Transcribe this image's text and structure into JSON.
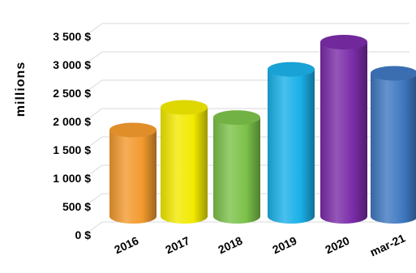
{
  "chart_data": {
    "type": "bar",
    "title": "",
    "xlabel": "",
    "ylabel": "millions",
    "categories": [
      "2016",
      "2017",
      "2018",
      "2019",
      "2020",
      "mar-21"
    ],
    "values": [
      1750,
      2150,
      1970,
      2820,
      3300,
      2750
    ],
    "colors": [
      "#f29a2e",
      "#f2ea00",
      "#7cc24a",
      "#1ab0e8",
      "#7a2ca8",
      "#3f78c0"
    ],
    "y_ticks": [
      0,
      500,
      1000,
      1500,
      2000,
      2500,
      3000,
      3500
    ],
    "y_tick_labels": [
      "0 $",
      "500 $",
      "1 000 $",
      "1 500 $",
      "2 000 $",
      "2 500 $",
      "3 000 $",
      "3 500 $"
    ],
    "ylim": [
      0,
      3500
    ],
    "grid": true,
    "style": "3d-cylinder"
  }
}
